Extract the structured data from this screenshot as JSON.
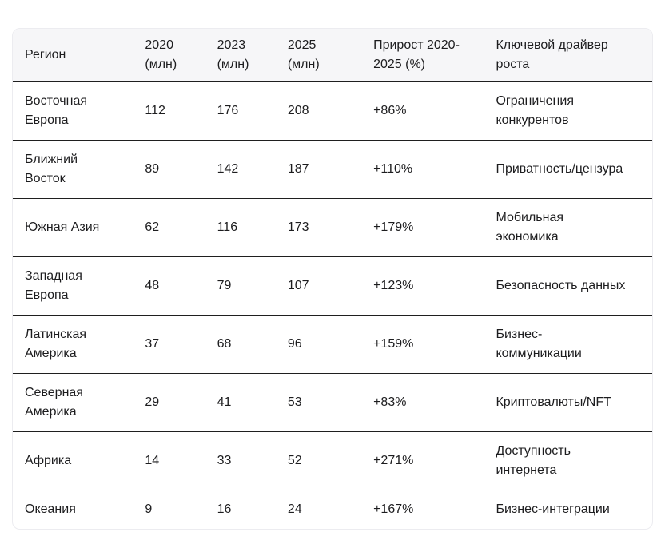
{
  "chart_data": {
    "type": "table",
    "columns": [
      "Регион",
      "2020\n(млн)",
      "2023\n(млн)",
      "2025\n(млн)",
      "Прирост 2020-\n2025 (%)",
      "Ключевой драйвер\nроста"
    ],
    "rows": [
      [
        "Восточная\nЕвропа",
        "112",
        "176",
        "208",
        "+86%",
        "Ограничения\nконкурентов"
      ],
      [
        "Ближний\nВосток",
        "89",
        "142",
        "187",
        "+110%",
        "Приватность/цензура"
      ],
      [
        "Южная Азия",
        "62",
        "116",
        "173",
        "+179%",
        "Мобильная\nэкономика"
      ],
      [
        "Западная\nЕвропа",
        "48",
        "79",
        "107",
        "+123%",
        "Безопасность данных"
      ],
      [
        "Латинская\nАмерика",
        "37",
        "68",
        "96",
        "+159%",
        "Бизнес-\nкоммуникации"
      ],
      [
        "Северная\nАмерика",
        "29",
        "41",
        "53",
        "+83%",
        "Криптовалюты/NFT"
      ],
      [
        "Африка",
        "14",
        "33",
        "52",
        "+271%",
        "Доступность\nинтернета"
      ],
      [
        "Океания",
        "9",
        "16",
        "24",
        "+167%",
        "Бизнес-интеграции"
      ]
    ],
    "colors": {
      "header_background": "#f6f6f8",
      "text": "#1d1d1f",
      "row_separator": "#1f1f1f",
      "outer_border": "#ececf0",
      "page_background": "#ffffff"
    },
    "layout_hints": {
      "grid": "horizontal separators only",
      "header_lines": 2,
      "units_note": "млн = millions"
    }
  }
}
